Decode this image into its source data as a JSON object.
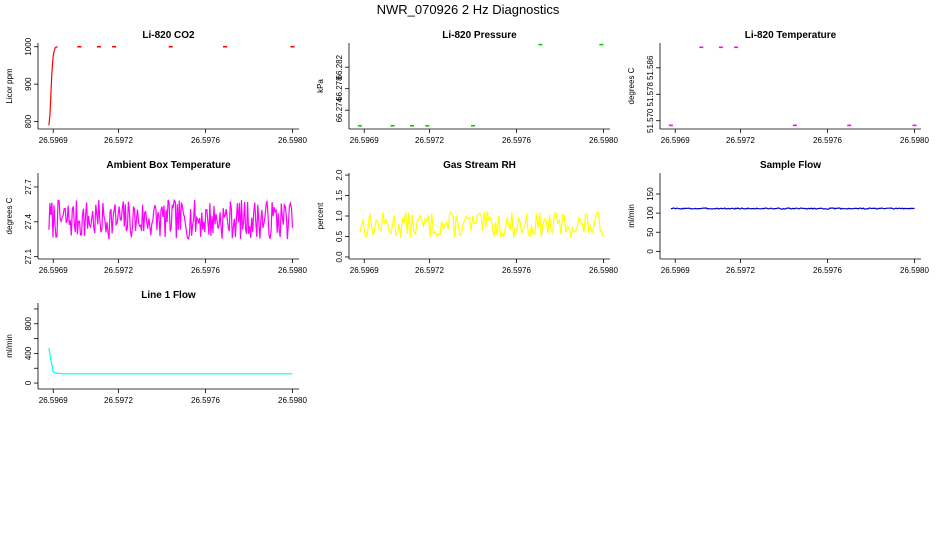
{
  "title": "NWR_070926  2 Hz Diagnostics",
  "chart_data": [
    {
      "type": "line",
      "title": "Li-820 CO2",
      "ylabel": "Licor ppm",
      "xlim": [
        26.59683,
        26.59803
      ],
      "ylim": [
        780,
        1010
      ],
      "xticks": [
        26.5969,
        26.5972,
        26.5976,
        26.598
      ],
      "xtick_labels": [
        "26.5969",
        "26.5972",
        "26.5976",
        "26.5980"
      ],
      "yticks": [
        800,
        900,
        1000
      ],
      "ytick_labels": [
        "800",
        "900",
        "1000"
      ],
      "style": "line",
      "color": "#ff0000",
      "x": [
        26.59688,
        26.596885,
        26.59689,
        26.596893,
        26.596896,
        26.5969,
        26.596905,
        26.59691,
        26.59692
      ],
      "y": [
        790,
        820,
        880,
        920,
        950,
        975,
        990,
        998,
        1000
      ],
      "segments": [
        {
          "x": 26.59702,
          "y": 1000
        },
        {
          "x": 26.59711,
          "y": 1000
        },
        {
          "x": 26.59718,
          "y": 1000
        },
        {
          "x": 26.59744,
          "y": 1000
        },
        {
          "x": 26.59769,
          "y": 1000
        },
        {
          "x": 26.598,
          "y": 1000
        }
      ]
    },
    {
      "type": "scatter",
      "title": "Li-820 Pressure",
      "ylabel": "kPa",
      "xlim": [
        26.59683,
        26.59803
      ],
      "ylim": [
        66.2705,
        66.2865
      ],
      "xticks": [
        26.5969,
        26.5972,
        26.5976,
        26.598
      ],
      "xtick_labels": [
        "26.5969",
        "26.5972",
        "26.5976",
        "26.5980"
      ],
      "yticks": [
        66.274,
        66.278,
        66.282
      ],
      "ytick_labels": [
        "66.274",
        "66.278",
        "66.282"
      ],
      "style": "segments",
      "color": "#00cc00",
      "segments": [
        {
          "x": 26.59688,
          "y": 66.2711
        },
        {
          "x": 26.59703,
          "y": 66.2711
        },
        {
          "x": 26.59712,
          "y": 66.2711
        },
        {
          "x": 26.59719,
          "y": 66.2711
        },
        {
          "x": 26.5974,
          "y": 66.2711
        },
        {
          "x": 26.59771,
          "y": 66.2862
        },
        {
          "x": 26.59799,
          "y": 66.2862
        }
      ]
    },
    {
      "type": "scatter",
      "title": "Li-820 Temperature",
      "ylabel": "degrees C",
      "xlim": [
        26.59683,
        26.59803
      ],
      "ylim": [
        51.5675,
        51.5935
      ],
      "xticks": [
        26.5969,
        26.5972,
        26.5976,
        26.598
      ],
      "xtick_labels": [
        "26.5969",
        "26.5972",
        "26.5976",
        "26.5980"
      ],
      "yticks": [
        51.57,
        51.578,
        51.586
      ],
      "ytick_labels": [
        "51.570",
        "51.578",
        "51.586"
      ],
      "style": "segments",
      "color": "#ff00ff",
      "segments": [
        {
          "x": 26.59688,
          "y": 51.5686
        },
        {
          "x": 26.59702,
          "y": 51.5922
        },
        {
          "x": 26.59711,
          "y": 51.5922
        },
        {
          "x": 26.59718,
          "y": 51.5922
        },
        {
          "x": 26.59745,
          "y": 51.5686
        },
        {
          "x": 26.5977,
          "y": 51.5686
        },
        {
          "x": 26.598,
          "y": 51.5686
        }
      ]
    },
    {
      "type": "line",
      "title": "Ambient Box Temperature",
      "ylabel": "degrees C",
      "xlim": [
        26.59683,
        26.59803
      ],
      "ylim": [
        27.08,
        27.82
      ],
      "xticks": [
        26.5969,
        26.5972,
        26.5976,
        26.598
      ],
      "xtick_labels": [
        "26.5969",
        "26.5972",
        "26.5976",
        "26.5980"
      ],
      "yticks": [
        27.1,
        27.4,
        27.7
      ],
      "ytick_labels": [
        "27.1",
        "27.4",
        "27.7"
      ],
      "style": "line",
      "color": "#ff00ff",
      "noise": {
        "n": 240,
        "mean": 27.42,
        "amp": 0.17,
        "seed": 7
      },
      "x_range": [
        26.59688,
        26.598
      ]
    },
    {
      "type": "line",
      "title": "Gas Stream RH",
      "ylabel": "percent",
      "xlim": [
        26.59683,
        26.59803
      ],
      "ylim": [
        -0.05,
        2.05
      ],
      "xticks": [
        26.5969,
        26.5972,
        26.5976,
        26.598
      ],
      "xtick_labels": [
        "26.5969",
        "26.5972",
        "26.5976",
        "26.5980"
      ],
      "yticks": [
        0.0,
        0.5,
        1.0,
        1.5,
        2.0
      ],
      "ytick_labels": [
        "0.0",
        "0.5",
        "1.0",
        "1.5",
        "2.0"
      ],
      "style": "line",
      "color": "#ffff00",
      "noise": {
        "n": 150,
        "mean": 0.78,
        "amp": 0.32,
        "seed": 13
      },
      "x_range": [
        26.59688,
        26.598
      ]
    },
    {
      "type": "line",
      "title": "Sample Flow",
      "ylabel": "ml/min",
      "xlim": [
        26.59683,
        26.59803
      ],
      "ylim": [
        -20,
        205
      ],
      "xticks": [
        26.5969,
        26.5972,
        26.5976,
        26.598
      ],
      "xtick_labels": [
        "26.5969",
        "26.5972",
        "26.5976",
        "26.5980"
      ],
      "yticks": [
        0,
        50,
        100,
        150
      ],
      "ytick_labels": [
        "0",
        "50",
        "100",
        "150"
      ],
      "style": "line",
      "color": "#0000cc",
      "noise": {
        "n": 200,
        "mean": 112,
        "amp": 1.5,
        "seed": 3
      },
      "x_range": [
        26.59688,
        26.598
      ]
    },
    {
      "type": "line",
      "title": "Line 1 Flow",
      "ylabel": "ml/min",
      "xlim": [
        26.59683,
        26.59803
      ],
      "ylim": [
        -80,
        1080
      ],
      "xticks": [
        26.5969,
        26.5972,
        26.5976,
        26.598
      ],
      "xtick_labels": [
        "26.5969",
        "26.5972",
        "26.5976",
        "26.5980"
      ],
      "yticks": [
        0,
        400,
        800
      ],
      "ytick_labels": [
        "0",
        "400",
        "800"
      ],
      "extra_yticks": [
        200,
        600,
        1000
      ],
      "style": "line",
      "color": "#00ffff",
      "x": [
        26.59688,
        26.59689,
        26.5969,
        26.59692,
        26.59695,
        26.598
      ],
      "y": [
        470,
        300,
        150,
        130,
        125,
        125
      ]
    }
  ]
}
